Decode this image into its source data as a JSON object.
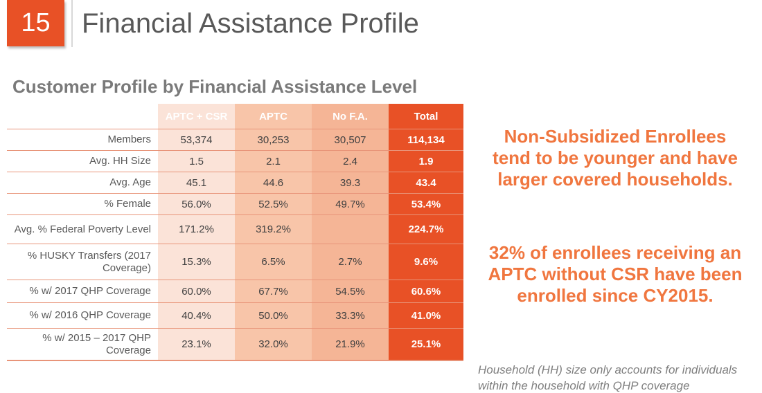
{
  "slide": {
    "number": "15",
    "title": "Financial Assistance Profile"
  },
  "section": {
    "heading": "Customer Profile by Financial Assistance Level"
  },
  "table": {
    "columns": [
      "APTC + CSR",
      "APTC",
      "No F.A.",
      "Total"
    ],
    "rows": [
      {
        "label": "Members",
        "values": [
          "53,374",
          "30,253",
          "30,507",
          "114,134"
        ]
      },
      {
        "label": "Avg. HH Size",
        "values": [
          "1.5",
          "2.1",
          "2.4",
          "1.9"
        ]
      },
      {
        "label": "Avg. Age",
        "values": [
          "45.1",
          "44.6",
          "39.3",
          "43.4"
        ]
      },
      {
        "label": "% Female",
        "values": [
          "56.0%",
          "52.5%",
          "49.7%",
          "53.4%"
        ]
      },
      {
        "label": "Avg. % Federal Poverty Level",
        "values": [
          "171.2%",
          "319.2%",
          "",
          "224.7%"
        ]
      },
      {
        "label": "% HUSKY Transfers (2017 Coverage)",
        "values": [
          "15.3%",
          "6.5%",
          "2.7%",
          "9.6%"
        ]
      },
      {
        "label": "% w/ 2017 QHP Coverage",
        "values": [
          "60.0%",
          "67.7%",
          "54.5%",
          "60.6%"
        ]
      },
      {
        "label": "% w/ 2016 QHP Coverage",
        "values": [
          "40.4%",
          "50.0%",
          "33.3%",
          "41.0%"
        ]
      },
      {
        "label": "% w/ 2015 – 2017 QHP Coverage",
        "values": [
          "23.1%",
          "32.0%",
          "21.9%",
          "25.1%"
        ]
      }
    ]
  },
  "callouts": [
    {
      "lines": [
        "Non-Subsidized Enrollees",
        "tend to be younger and have",
        "larger covered households."
      ]
    },
    {
      "lines": [
        "32% of enrollees receiving an",
        "APTC without CSR have been",
        "enrolled since CY2015."
      ]
    }
  ],
  "footnote": {
    "lines": [
      "Household (HH) size only accounts for individuals",
      "within the household with QHP coverage"
    ]
  },
  "colors": {
    "orange-strong": "#E85126",
    "nofa-header": "#EF6843",
    "salmon-header": "#F4A587",
    "col1-body": "#FBE3D8",
    "col2-body": "#F8C5A9",
    "col3-body": "#F5B596",
    "divider": "#E89479",
    "title-gray": "#595959",
    "heading-gray": "#7A7A7A",
    "callout-orange": "#F0763F",
    "footnote-gray": "#7F7F7F",
    "cell-text": "#404040"
  }
}
